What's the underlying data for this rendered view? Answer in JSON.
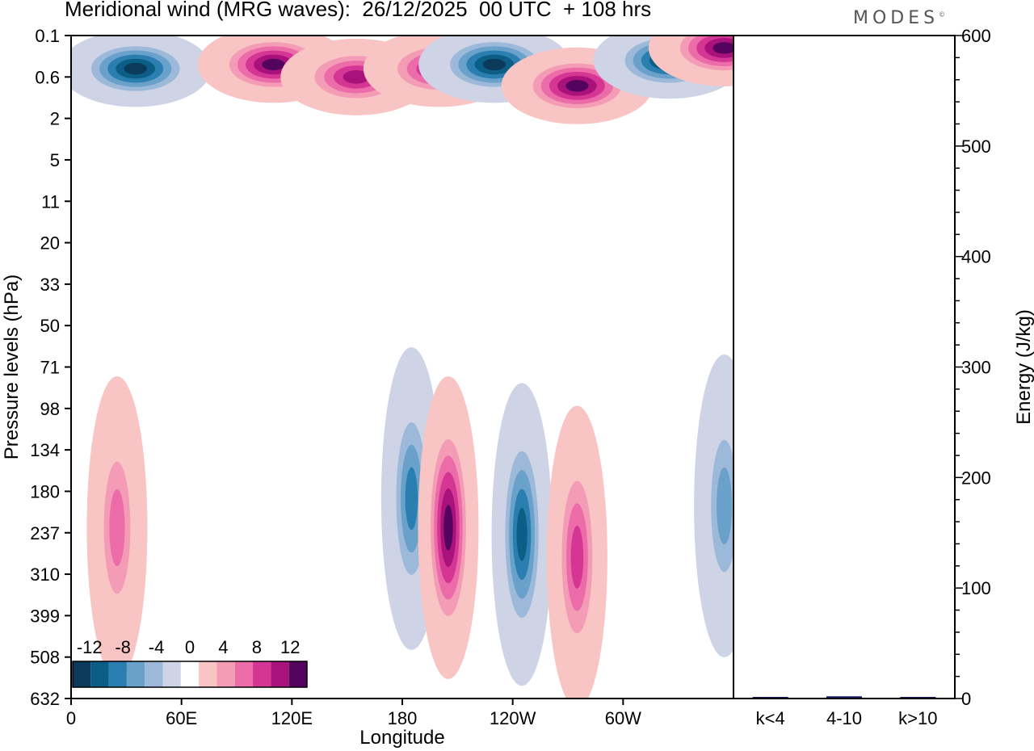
{
  "title": "Meridional wind (MRG waves):  26/12/2025  00 UTC  + 108 hrs",
  "logo": "MODES",
  "chart_data": [
    {
      "type": "heatmap",
      "title": "Meridional wind (MRG waves)",
      "xlabel": "Longitude",
      "ylabel": "Pressure levels (hPa)",
      "x_ticks": [
        "0",
        "60E",
        "120E",
        "180",
        "120W",
        "60W"
      ],
      "y_ticks": [
        "0.1",
        "0.6",
        "2",
        "5",
        "11",
        "20",
        "33",
        "50",
        "71",
        "98",
        "134",
        "180",
        "237",
        "310",
        "399",
        "508",
        "632"
      ],
      "colorbar": {
        "labels": [
          "-12",
          "-8",
          "-4",
          "0",
          "4",
          "8",
          "12"
        ],
        "levels": [
          -14,
          -12,
          -10,
          -8,
          -6,
          -4,
          -2,
          2,
          4,
          6,
          8,
          10,
          12,
          14
        ],
        "colors": [
          "#0b3a5a",
          "#0c5e87",
          "#2b7fb0",
          "#6aa1ca",
          "#9cb9d9",
          "#cfd3e6",
          "#ffffff",
          "#f9c4c4",
          "#f49cb6",
          "#ec6ba9",
          "#d53593",
          "#a8127a",
          "#54045e"
        ]
      },
      "features": [
        {
          "lon": 35,
          "level": 0.5,
          "value": -14
        },
        {
          "lon": 110,
          "level": 0.45,
          "value": 14
        },
        {
          "lon": 155,
          "level": 0.6,
          "value": 13
        },
        {
          "lon": 200,
          "level": 0.5,
          "value": 13
        },
        {
          "lon": 230,
          "level": 0.45,
          "value": -14
        },
        {
          "lon": 275,
          "level": 0.9,
          "value": 14
        },
        {
          "lon": 325,
          "level": 0.4,
          "value": -14
        },
        {
          "lon": 355,
          "level": 0.25,
          "value": 14
        },
        {
          "lon": 185,
          "level": 190,
          "value": -10
        },
        {
          "lon": 205,
          "level": 230,
          "value": 14
        },
        {
          "lon": 245,
          "level": 240,
          "value": -12
        },
        {
          "lon": 275,
          "level": 280,
          "value": 10
        },
        {
          "lon": 25,
          "level": 230,
          "value": 9
        },
        {
          "lon": 355,
          "level": 200,
          "value": -8
        }
      ]
    },
    {
      "type": "bar",
      "categories": [
        "k<4",
        "4-10",
        "k>10"
      ],
      "values": [
        0,
        2,
        0
      ],
      "ylabel": "Energy (J/kg)",
      "ylim": [
        0,
        600
      ],
      "y_ticks": [
        "0",
        "100",
        "200",
        "300",
        "400",
        "500",
        "600"
      ],
      "bar_color": "#1a1a66"
    }
  ]
}
